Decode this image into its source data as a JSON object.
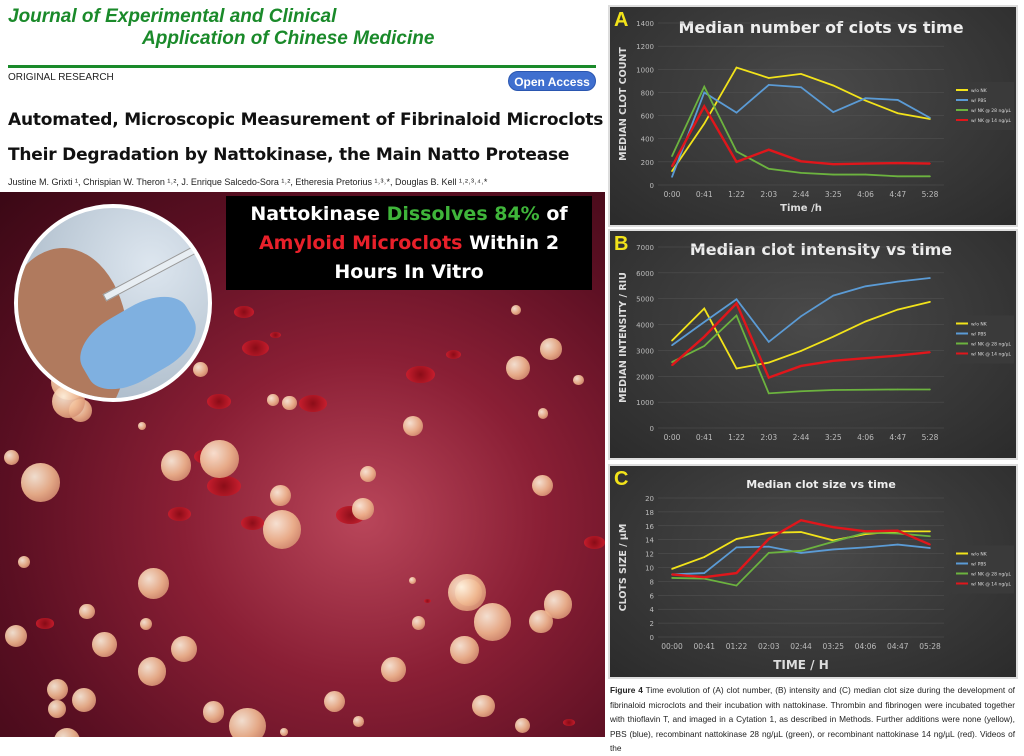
{
  "journal": {
    "line1": "Journal of Experimental and Clinical",
    "line2": "Application of Chinese Medicine"
  },
  "article_type": "ORIGINAL RESEARCH",
  "open_access": "Open Access",
  "title": {
    "line1": "Automated, Microscopic Measurement of Fibrinaloid Microclots and",
    "line2": "Their Degradation by Nattokinase, the Main Natto Protease"
  },
  "authors": "Justine M. Grixti ¹, Chrispian W. Theron ¹˒², J. Enrique Salcedo-Sora ¹˒², Etheresia Pretorius ¹˒³˒*, Douglas B. Kell ¹˒²˒³˒⁴˒*",
  "banner": {
    "p1": "Nattokinase ",
    "p2": "Dissolves 84%",
    "p3": " of",
    "p4": "Amyloid Microclots",
    "p5": " Within 2",
    "p6": "Hours In Vitro"
  },
  "colors": {
    "yellow": "#f2e31a",
    "blue": "#5b9bd5",
    "green": "#6cb33f",
    "red": "#e0161b",
    "journal_green": "#1a8a2a"
  },
  "chart_data": [
    {
      "panel": "A",
      "type": "line",
      "title": "Median number of clots vs time",
      "xlabel": "Time  /h",
      "ylabel": "MEDIAN CLOT COUNT",
      "categories": [
        "0:00",
        "0:41",
        "1:22",
        "2:03",
        "2:44",
        "3:25",
        "4:06",
        "4:47",
        "5:28"
      ],
      "ylim": [
        0,
        1400
      ],
      "yticks": [
        0,
        200,
        400,
        600,
        800,
        1000,
        1200,
        1400
      ],
      "grid": true,
      "legend": "right",
      "series": [
        {
          "name": "w/o NK",
          "color": "#f2e31a",
          "values": [
            120,
            530,
            1015,
            925,
            960,
            860,
            730,
            620,
            570
          ]
        },
        {
          "name": "w/ PBS",
          "color": "#5b9bd5",
          "values": [
            70,
            800,
            625,
            865,
            845,
            630,
            750,
            735,
            580
          ]
        },
        {
          "name": "w/ NK @ 28 ng/µL",
          "color": "#6cb33f",
          "values": [
            250,
            850,
            290,
            140,
            105,
            90,
            90,
            75,
            75
          ]
        },
        {
          "name": "w/ NK @ 14 ng/µL",
          "color": "#e0161b",
          "values": [
            160,
            680,
            200,
            305,
            205,
            180,
            185,
            190,
            185
          ]
        }
      ]
    },
    {
      "panel": "B",
      "type": "line",
      "title": "Median clot intensity vs time",
      "xlabel": "",
      "ylabel": "MEDIAN INTENSITY / RIU",
      "categories": [
        "0:00",
        "0:41",
        "1:22",
        "2:03",
        "2:44",
        "3:25",
        "4:06",
        "4:47",
        "5:28"
      ],
      "ylim": [
        0,
        7000
      ],
      "yticks": [
        0,
        1000,
        2000,
        3000,
        4000,
        5000,
        6000,
        7000
      ],
      "grid": true,
      "legend": "right",
      "series": [
        {
          "name": "w/o NK",
          "color": "#f2e31a",
          "values": [
            3380,
            4620,
            2300,
            2530,
            2980,
            3530,
            4120,
            4580,
            4880
          ]
        },
        {
          "name": "w/ PBS",
          "color": "#5b9bd5",
          "values": [
            3200,
            4100,
            4980,
            3330,
            4320,
            5120,
            5480,
            5660,
            5800
          ]
        },
        {
          "name": "w/ NK @ 28 ng/µL",
          "color": "#6cb33f",
          "values": [
            2550,
            3170,
            4350,
            1340,
            1420,
            1470,
            1480,
            1490,
            1490
          ]
        },
        {
          "name": "w/ NK @ 14 ng/µL",
          "color": "#e0161b",
          "values": [
            2430,
            3530,
            4820,
            1950,
            2400,
            2600,
            2700,
            2800,
            2930
          ]
        }
      ]
    },
    {
      "panel": "C",
      "type": "line",
      "title": "Median clot size vs time",
      "xlabel": "TIME / H",
      "ylabel": "CLOTS SIZE / µM",
      "categories": [
        "00:00",
        "00:41",
        "01:22",
        "02:03",
        "02:44",
        "03:25",
        "04:06",
        "04:47",
        "05:28"
      ],
      "ylim": [
        0,
        20
      ],
      "yticks": [
        0,
        2,
        4,
        6,
        8,
        10,
        12,
        14,
        16,
        18,
        20
      ],
      "grid": true,
      "legend": "right",
      "series": [
        {
          "name": "w/o NK",
          "color": "#f2e31a",
          "values": [
            9.8,
            11.5,
            14.1,
            15.0,
            15.1,
            13.9,
            14.8,
            15.2,
            15.2
          ]
        },
        {
          "name": "w/ PBS",
          "color": "#5b9bd5",
          "values": [
            9.0,
            9.2,
            12.9,
            13.0,
            12.1,
            12.6,
            12.9,
            13.3,
            12.8
          ]
        },
        {
          "name": "w/ NK @ 28 ng/µL",
          "color": "#6cb33f",
          "values": [
            8.5,
            8.4,
            7.4,
            12.1,
            12.4,
            13.7,
            15.0,
            14.9,
            14.5
          ]
        },
        {
          "name": "w/ NK @ 14 ng/µL",
          "color": "#e0161b",
          "values": [
            9.0,
            8.6,
            9.2,
            14.1,
            16.8,
            15.8,
            15.2,
            15.3,
            13.3
          ]
        }
      ]
    }
  ],
  "caption": {
    "label": "Figure 4",
    "text": " Time evolution of (A) clot number, (B) intensity and (C) median clot size during the development of fibrinaloid microclots and their incubation with nattokinase. Thrombin and fibrinogen were incubated together with thioflavin T, and imaged in a Cytation 1, as described in Methods. Further additions were none (yellow), PBS (blue), recombinant nattokinase 28 ng/µL (green), or recombinant nattokinase 14 ng/µL (red). Videos of the"
  }
}
